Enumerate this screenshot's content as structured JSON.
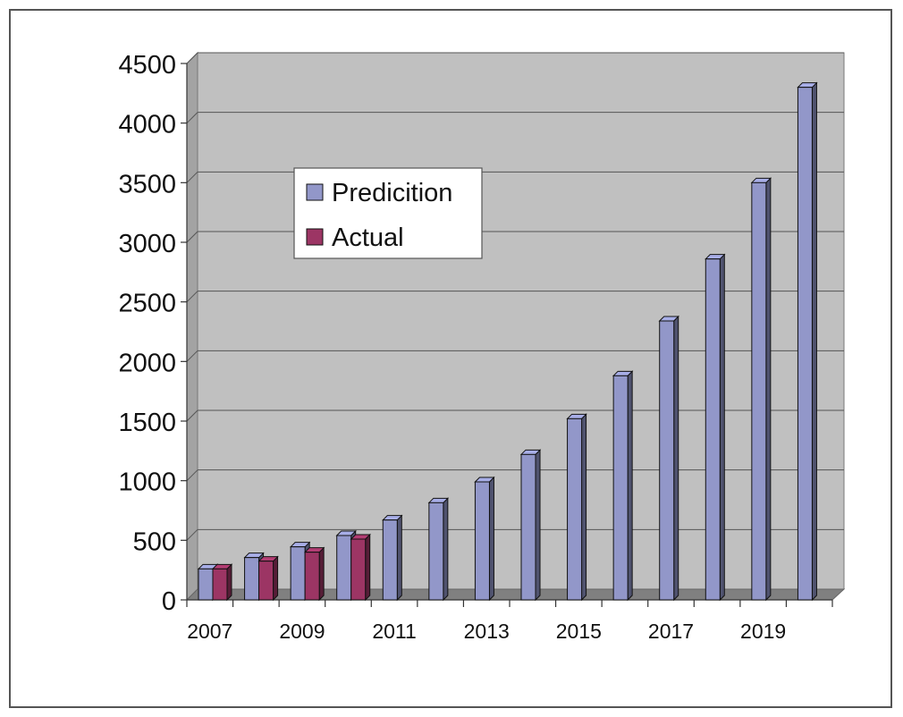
{
  "chart_data": {
    "type": "bar",
    "title": "",
    "xlabel": "",
    "ylabel": "",
    "ylim": [
      0,
      4500
    ],
    "yticks": [
      0,
      500,
      1000,
      1500,
      2000,
      2500,
      3000,
      3500,
      4000,
      4500
    ],
    "categories": [
      "2007",
      "2008",
      "2009",
      "2010",
      "2011",
      "2012",
      "2013",
      "2014",
      "2015",
      "2016",
      "2017",
      "2018",
      "2019",
      "2020"
    ],
    "x_tick_labels": [
      "2007",
      "",
      "2009",
      "",
      "2011",
      "",
      "2013",
      "",
      "2015",
      "",
      "2017",
      "",
      "2019",
      ""
    ],
    "series": [
      {
        "name": "Predicition",
        "color": "#9297c9",
        "values": [
          260,
          355,
          445,
          540,
          670,
          815,
          990,
          1220,
          1520,
          1880,
          2340,
          2860,
          3500,
          4300
        ]
      },
      {
        "name": "Actual",
        "color": "#9c3564",
        "values": [
          260,
          325,
          400,
          510,
          null,
          null,
          null,
          null,
          null,
          null,
          null,
          null,
          null,
          null
        ]
      }
    ],
    "grid": true,
    "legend_position": "upper-left inside plot",
    "style": "3d-columns",
    "colors": {
      "plot_background": "#c0c0c0",
      "floor": "#808080",
      "grid": "#555555"
    }
  }
}
